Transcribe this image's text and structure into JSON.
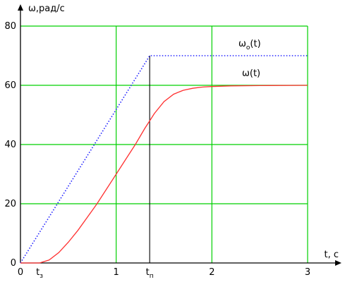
{
  "colors": {
    "grid": "#00d000",
    "curve": "#ff3030",
    "reference": "#2020ff",
    "axes": "#000000",
    "background": "#ffffff"
  },
  "chart_data": {
    "type": "line",
    "title": "",
    "ylabel": "ω,рад/с",
    "xlabel": "t, c",
    "xlim": [
      0,
      3
    ],
    "ylim": [
      0,
      80
    ],
    "grid": true,
    "xticks": [
      {
        "value": 0,
        "label": "0"
      },
      {
        "value": 1,
        "label": "1"
      },
      {
        "value": 2,
        "label": "2"
      },
      {
        "value": 3,
        "label": "3"
      }
    ],
    "yticks": [
      {
        "value": 0,
        "label": "0"
      },
      {
        "value": 20,
        "label": "20"
      },
      {
        "value": 40,
        "label": "40"
      },
      {
        "value": 60,
        "label": "60"
      },
      {
        "value": 80,
        "label": "80"
      }
    ],
    "markers": [
      {
        "x": 0.2,
        "label": "t",
        "subscript": "з"
      },
      {
        "x": 1.35,
        "label": "t",
        "subscript": "п"
      }
    ],
    "marker_line": {
      "x": 1.35,
      "y0": 0,
      "y1": 70
    },
    "series": [
      {
        "name": "ω",
        "name_subscript": "о",
        "name_suffix": "(t)",
        "style": "dotted",
        "x": [
          0,
          1.35,
          3
        ],
        "y": [
          0,
          70,
          70
        ]
      },
      {
        "name": "ω(t)",
        "style": "solid",
        "x": [
          0,
          0.2,
          0.3,
          0.4,
          0.5,
          0.6,
          0.7,
          0.8,
          0.9,
          1.0,
          1.1,
          1.2,
          1.3,
          1.35,
          1.4,
          1.5,
          1.6,
          1.7,
          1.8,
          1.9,
          2.0,
          2.2,
          2.5,
          3.0
        ],
        "y": [
          0,
          0,
          1,
          3.5,
          7,
          11,
          15.5,
          20,
          25,
          30,
          35,
          40,
          45.5,
          48,
          50.5,
          54.5,
          57,
          58.3,
          59,
          59.4,
          59.6,
          59.8,
          59.9,
          60
        ]
      }
    ]
  }
}
